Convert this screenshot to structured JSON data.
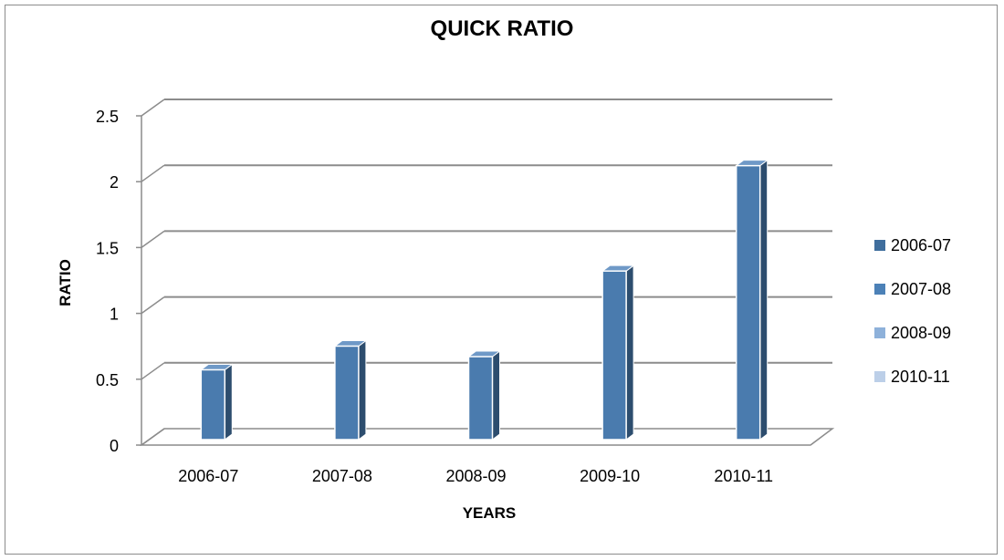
{
  "chart_data": {
    "type": "bar",
    "title": "QUICK RATIO",
    "xlabel": "YEARS",
    "ylabel": "RATIO",
    "categories": [
      "2006-07",
      "2007-08",
      "2008-09",
      "2009-10",
      "2010-11"
    ],
    "values": [
      0.53,
      0.71,
      0.63,
      1.28,
      2.08
    ],
    "ylim": [
      0,
      2.5
    ],
    "yticks": [
      "0",
      "0.5",
      "1",
      "1.5",
      "2",
      "2.5"
    ],
    "grid": true,
    "style": "3d-column",
    "legend": {
      "placement": "right",
      "entries": [
        {
          "label": "2006-07",
          "color": "#3f6e9d"
        },
        {
          "label": "2007-08",
          "color": "#4c81b7"
        },
        {
          "label": "2008-09",
          "color": "#8eb1da"
        },
        {
          "label": "2010-11",
          "color": "#bccfe8"
        }
      ]
    },
    "colors": {
      "bar_front": "#4a7bae",
      "bar_side": "#2d4d6e",
      "bar_top": "#6f99c7",
      "gridline": "#8c8c8c"
    }
  }
}
